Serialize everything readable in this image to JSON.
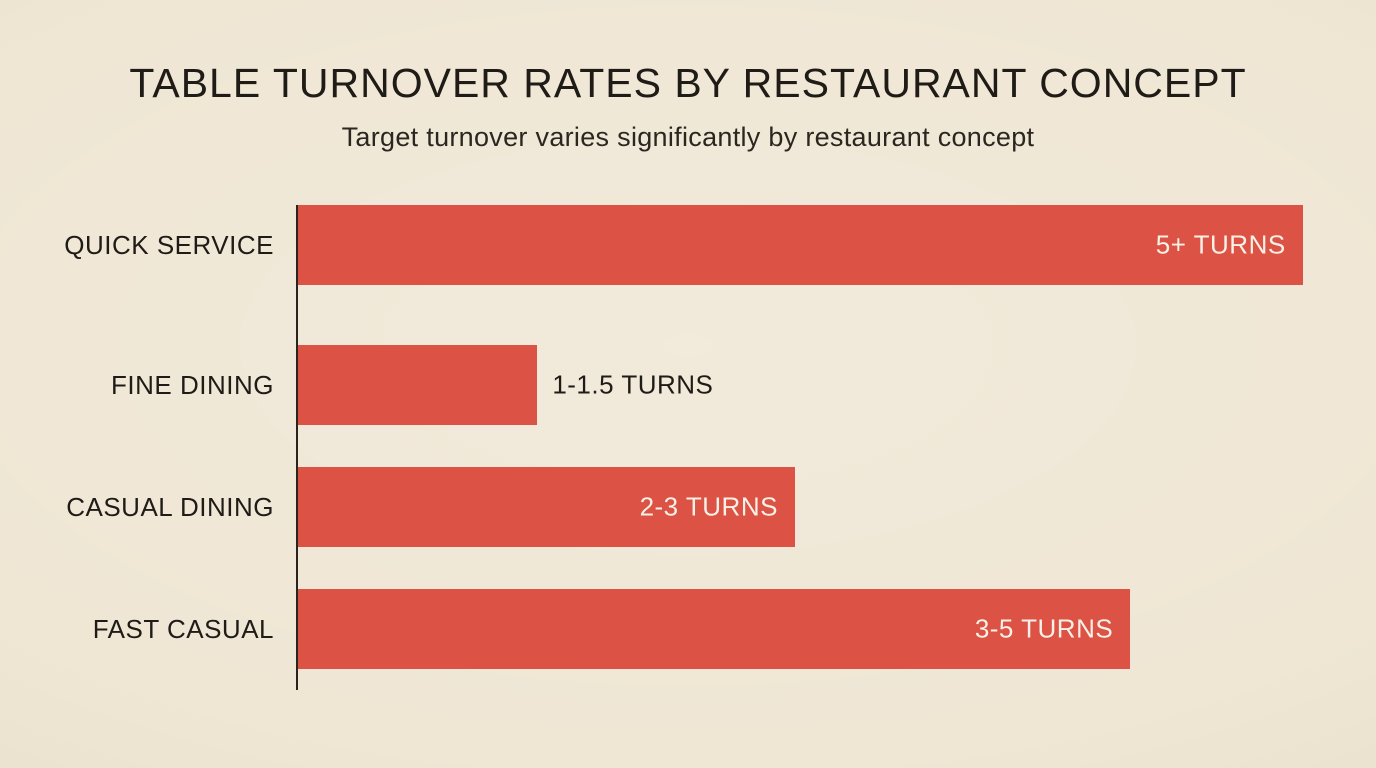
{
  "colors": {
    "background": "#EFE6D4",
    "bar": "#DC5244",
    "text_dark": "#1F1B16",
    "text_sub": "#2B2620",
    "label_light": "#F7F1E7",
    "axis": "#2A241D"
  },
  "chart_data": {
    "type": "bar",
    "orientation": "horizontal",
    "title": "TABLE TURNOVER RATES BY RESTAURANT CONCEPT",
    "subtitle": "Target turnover varies significantly by restaurant concept",
    "grid": false,
    "legend": false,
    "x_axis_visible": false,
    "y_axis_line": true,
    "categories": [
      "FINE DINING",
      "CASUAL DINING",
      "FAST CASUAL",
      "QUICK SERVICE"
    ],
    "bars": [
      {
        "category": "FINE DINING",
        "value_label": "1-1.5 TURNS",
        "turns_min": 1,
        "turns_max": 1.5,
        "bar_fraction": 0.222,
        "label_position": "outside"
      },
      {
        "category": "CASUAL DINING",
        "value_label": "2-3 TURNS",
        "turns_min": 2,
        "turns_max": 3,
        "bar_fraction": 0.461,
        "label_position": "inside"
      },
      {
        "category": "FAST CASUAL",
        "value_label": "3-5 TURNS",
        "turns_min": 3,
        "turns_max": 5,
        "bar_fraction": 0.772,
        "label_position": "inside"
      },
      {
        "category": "QUICK SERVICE",
        "value_label": "5+ TURNS",
        "turns_min": 5,
        "turns_max": null,
        "bar_fraction": 0.932,
        "label_position": "inside"
      }
    ]
  }
}
